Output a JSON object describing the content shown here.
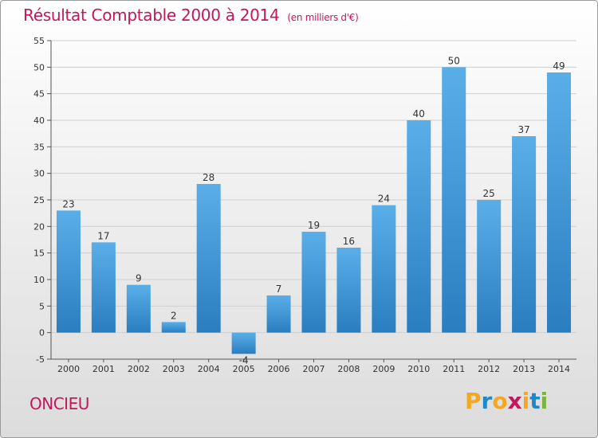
{
  "title": "Résultat Comptable 2000 à 2014",
  "unit_note": "(en milliers d'€)",
  "commune": "ONCIEU",
  "logo": {
    "letters": [
      "P",
      "r",
      "o",
      "x",
      "i",
      "t",
      "i"
    ],
    "colors": [
      "#f5a623",
      "#1e88c8",
      "#f5a623",
      "#c2185b",
      "#f5a623",
      "#1e88c8",
      "#7cb342"
    ]
  },
  "chart_data": {
    "type": "bar",
    "categories": [
      "2000",
      "2001",
      "2002",
      "2003",
      "2004",
      "2005",
      "2006",
      "2007",
      "2008",
      "2009",
      "2010",
      "2011",
      "2012",
      "2013",
      "2014"
    ],
    "values": [
      23,
      17,
      9,
      2,
      28,
      -4,
      7,
      19,
      16,
      24,
      40,
      50,
      25,
      37,
      49
    ],
    "ylim": [
      -5,
      55
    ],
    "yticks": [
      -5,
      0,
      5,
      10,
      15,
      20,
      25,
      30,
      35,
      40,
      45,
      50,
      55
    ],
    "grid": true,
    "bar_color": "#3a8fd0"
  }
}
